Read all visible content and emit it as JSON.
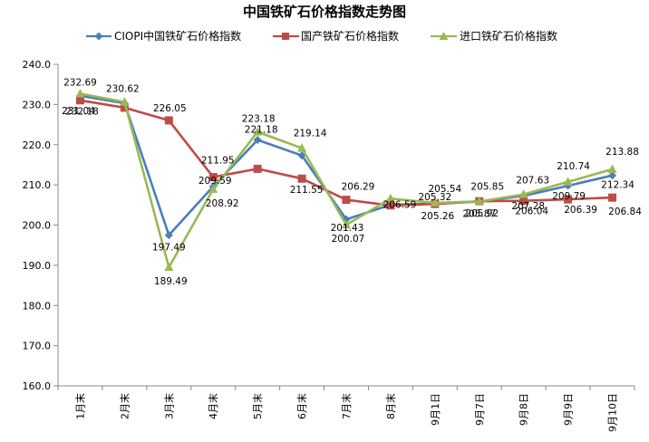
{
  "chart_data": {
    "type": "line",
    "title": "中国铁矿石价格指数走势图",
    "categories": [
      "1月末",
      "2月末",
      "3月末",
      "4月末",
      "5月末",
      "6月末",
      "7月末",
      "8月末",
      "9月1日",
      "9月7日",
      "9月8日",
      "9月9日",
      "9月10日"
    ],
    "ylim": [
      160,
      240
    ],
    "yticks": [
      "160.0",
      "170.0",
      "180.0",
      "190.0",
      "200.0",
      "210.0",
      "220.0",
      "230.0",
      "240.0"
    ],
    "grid": false,
    "legend_position": "top",
    "series": [
      {
        "name": "CIOPI中国铁矿石价格指数",
        "color": "#4a7ebb",
        "marker": "diamond",
        "values": [
          232.18,
          230.3,
          197.49,
          209.59,
          221.18,
          217.3,
          201.43,
          205.05,
          205.32,
          205.87,
          207.28,
          209.79,
          212.34
        ],
        "labels": [
          "232.18",
          "",
          "197.49",
          "209.59",
          "221.18",
          "",
          "201.43",
          "",
          "205.32",
          "205.87",
          "207.28",
          "209.79",
          "212.34"
        ]
      },
      {
        "name": "国产铁矿石价格指数",
        "color": "#be4b48",
        "marker": "square",
        "values": [
          231.04,
          229.2,
          226.05,
          211.95,
          214.0,
          211.55,
          206.29,
          204.9,
          205.26,
          205.92,
          206.04,
          206.39,
          206.84
        ],
        "labels": [
          "231.04",
          "",
          "226.05",
          "211.95",
          "",
          "211.55",
          "206.29",
          "",
          "205.26",
          "205.92",
          "206.04",
          "206.39",
          "206.84"
        ]
      },
      {
        "name": "进口铁矿石价格指数",
        "color": "#98b954",
        "marker": "triangle",
        "values": [
          232.69,
          230.62,
          189.49,
          208.92,
          223.18,
          219.14,
          200.07,
          206.59,
          205.54,
          205.85,
          207.63,
          210.74,
          213.88
        ],
        "labels": [
          "232.69",
          "230.62",
          "189.49",
          "208.92",
          "223.18",
          "219.14",
          "200.07",
          "206.59",
          "205.54",
          "205.85",
          "207.63",
          "210.74",
          "213.88"
        ]
      }
    ]
  }
}
